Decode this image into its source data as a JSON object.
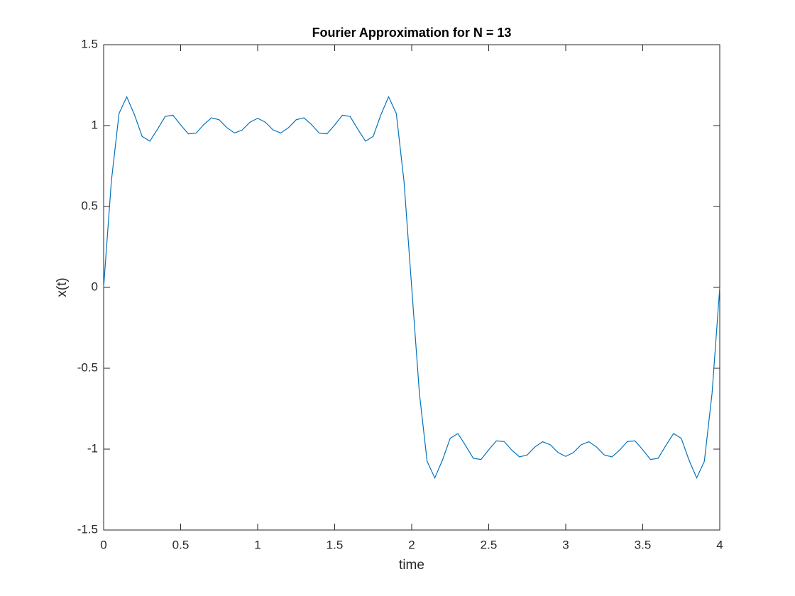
{
  "chart_data": {
    "type": "line",
    "title": "Fourier Approximation for N = 13",
    "x_label": "time",
    "y_label": "x(t)",
    "x": [
      0,
      0.05,
      0.1,
      0.15,
      0.2,
      0.25,
      0.3,
      0.35,
      0.4,
      0.45,
      0.5,
      0.55,
      0.6,
      0.65,
      0.7,
      0.75,
      0.8,
      0.85,
      0.9,
      0.95,
      1,
      1.05,
      1.1,
      1.15,
      1.2,
      1.25,
      1.3,
      1.35,
      1.4,
      1.45,
      1.5,
      1.55,
      1.6,
      1.65,
      1.7,
      1.75,
      1.8,
      1.85,
      1.9,
      1.95,
      2,
      2.05,
      2.1,
      2.15,
      2.2,
      2.25,
      2.3,
      2.35,
      2.4,
      2.45,
      2.5,
      2.55,
      2.6,
      2.65,
      2.7,
      2.75,
      2.8,
      2.85,
      2.9,
      2.95,
      3,
      3.05,
      3.1,
      3.15,
      3.2,
      3.25,
      3.3,
      3.35,
      3.4,
      3.45,
      3.5,
      3.55,
      3.6,
      3.65,
      3.7,
      3.75,
      3.8,
      3.85,
      3.9,
      3.95,
      4
    ],
    "series": [
      {
        "color": "#0072bd",
        "values": [
          0,
          0.655,
          1.075,
          1.178,
          1.067,
          0.933,
          0.904,
          0.978,
          1.057,
          1.064,
          1.004,
          0.949,
          0.953,
          1.006,
          1.048,
          1.036,
          0.987,
          0.954,
          0.973,
          1.021,
          1.045,
          1.021,
          0.973,
          0.954,
          0.987,
          1.036,
          1.048,
          1.006,
          0.953,
          0.949,
          1.004,
          1.064,
          1.057,
          0.978,
          0.904,
          0.933,
          1.067,
          1.178,
          1.075,
          0.655,
          0,
          -0.655,
          -1.075,
          -1.178,
          -1.067,
          -0.933,
          -0.904,
          -0.978,
          -1.057,
          -1.064,
          -1.004,
          -0.949,
          -0.953,
          -1.006,
          -1.048,
          -1.036,
          -0.987,
          -0.954,
          -0.973,
          -1.021,
          -1.045,
          -1.021,
          -0.973,
          -0.954,
          -0.987,
          -1.036,
          -1.048,
          -1.006,
          -0.953,
          -0.949,
          -1.004,
          -1.064,
          -1.057,
          -0.978,
          -0.904,
          -0.933,
          -1.067,
          -1.178,
          -1.075,
          -0.655,
          0
        ]
      }
    ],
    "xlim": [
      0,
      4
    ],
    "xticks": [
      0,
      0.5,
      1,
      1.5,
      2,
      2.5,
      3,
      3.5,
      4
    ],
    "ylim": [
      -1.5,
      1.5
    ],
    "yticks": [
      -1.5,
      -1,
      -0.5,
      0,
      0.5,
      1,
      1.5
    ],
    "grid": false
  }
}
